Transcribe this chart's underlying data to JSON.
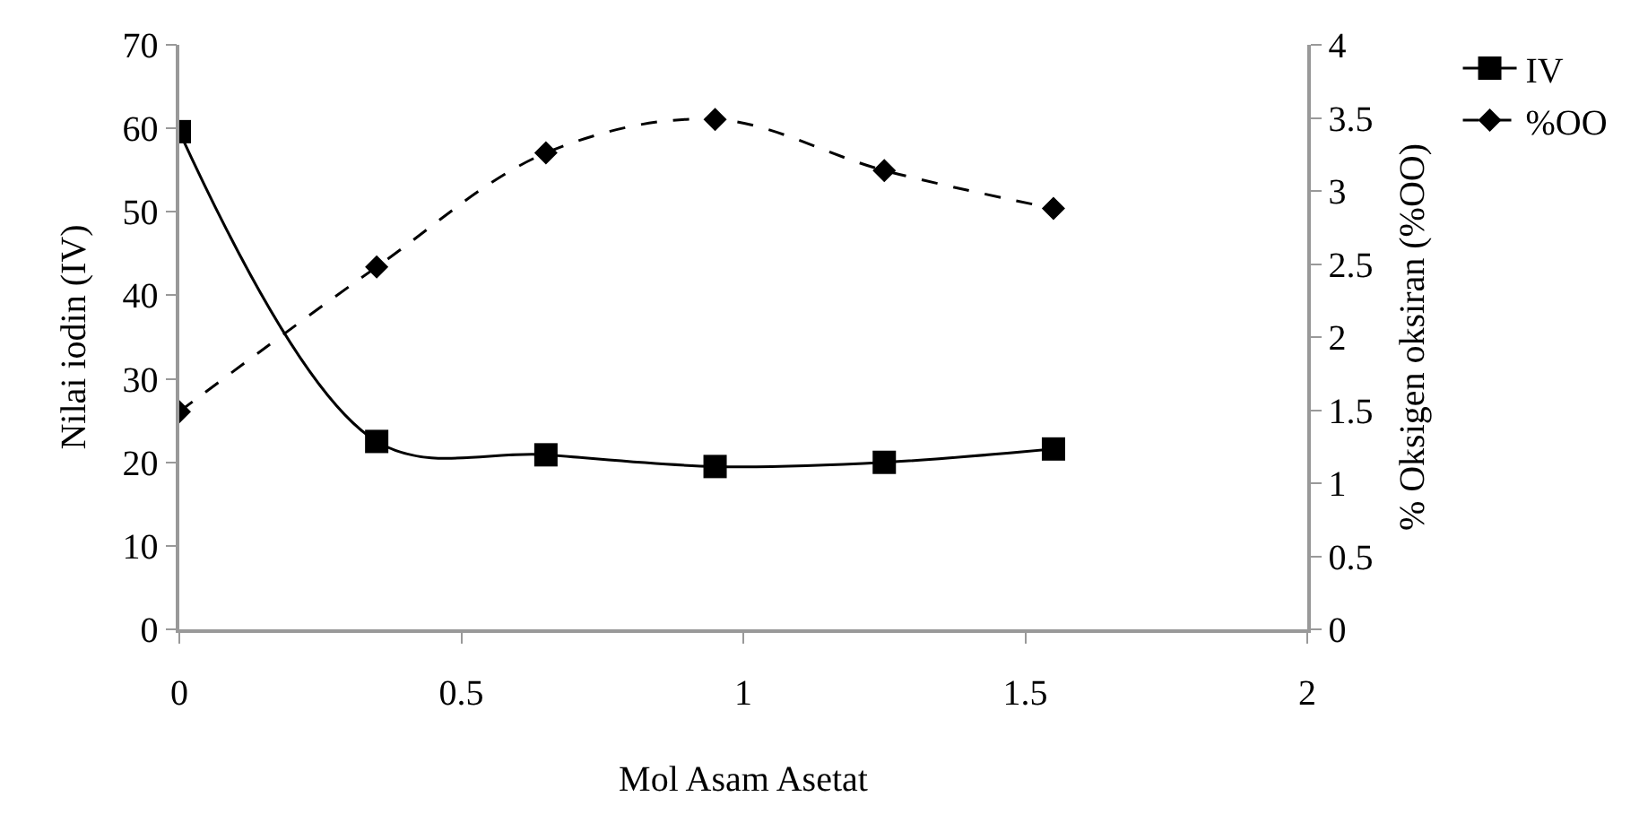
{
  "chart_data": {
    "type": "line",
    "xlabel": "Mol Asam Asetat",
    "ylabel": "Nilai iodin (IV)",
    "y2label": "% Oksigen oksiran (%OO)",
    "x": [
      0,
      0.35,
      0.65,
      0.95,
      1.25,
      1.55
    ],
    "series": [
      {
        "name": "IV",
        "color": "#000000",
        "values": [
          59.6,
          22.5,
          20.9,
          19.5,
          20.0,
          21.6
        ],
        "marker": "square",
        "line_style": "solid"
      },
      {
        "name": "%OO",
        "color": "#000000",
        "values": [
          1.49,
          2.48,
          3.26,
          3.49,
          3.14,
          2.88
        ],
        "marker": "diamond",
        "line_style": "dashed",
        "axis": "y2"
      }
    ],
    "xlim": [
      0,
      2
    ],
    "xticks": [
      0,
      0.5,
      1,
      1.5,
      2
    ],
    "ylim": [
      0,
      70
    ],
    "yticks": [
      0,
      10,
      20,
      30,
      40,
      50,
      60,
      70
    ],
    "y2lim": [
      0,
      4
    ],
    "y2ticks": [
      0,
      0.5,
      1,
      1.5,
      2,
      2.5,
      3,
      3.5,
      4
    ],
    "legend": "top right"
  }
}
